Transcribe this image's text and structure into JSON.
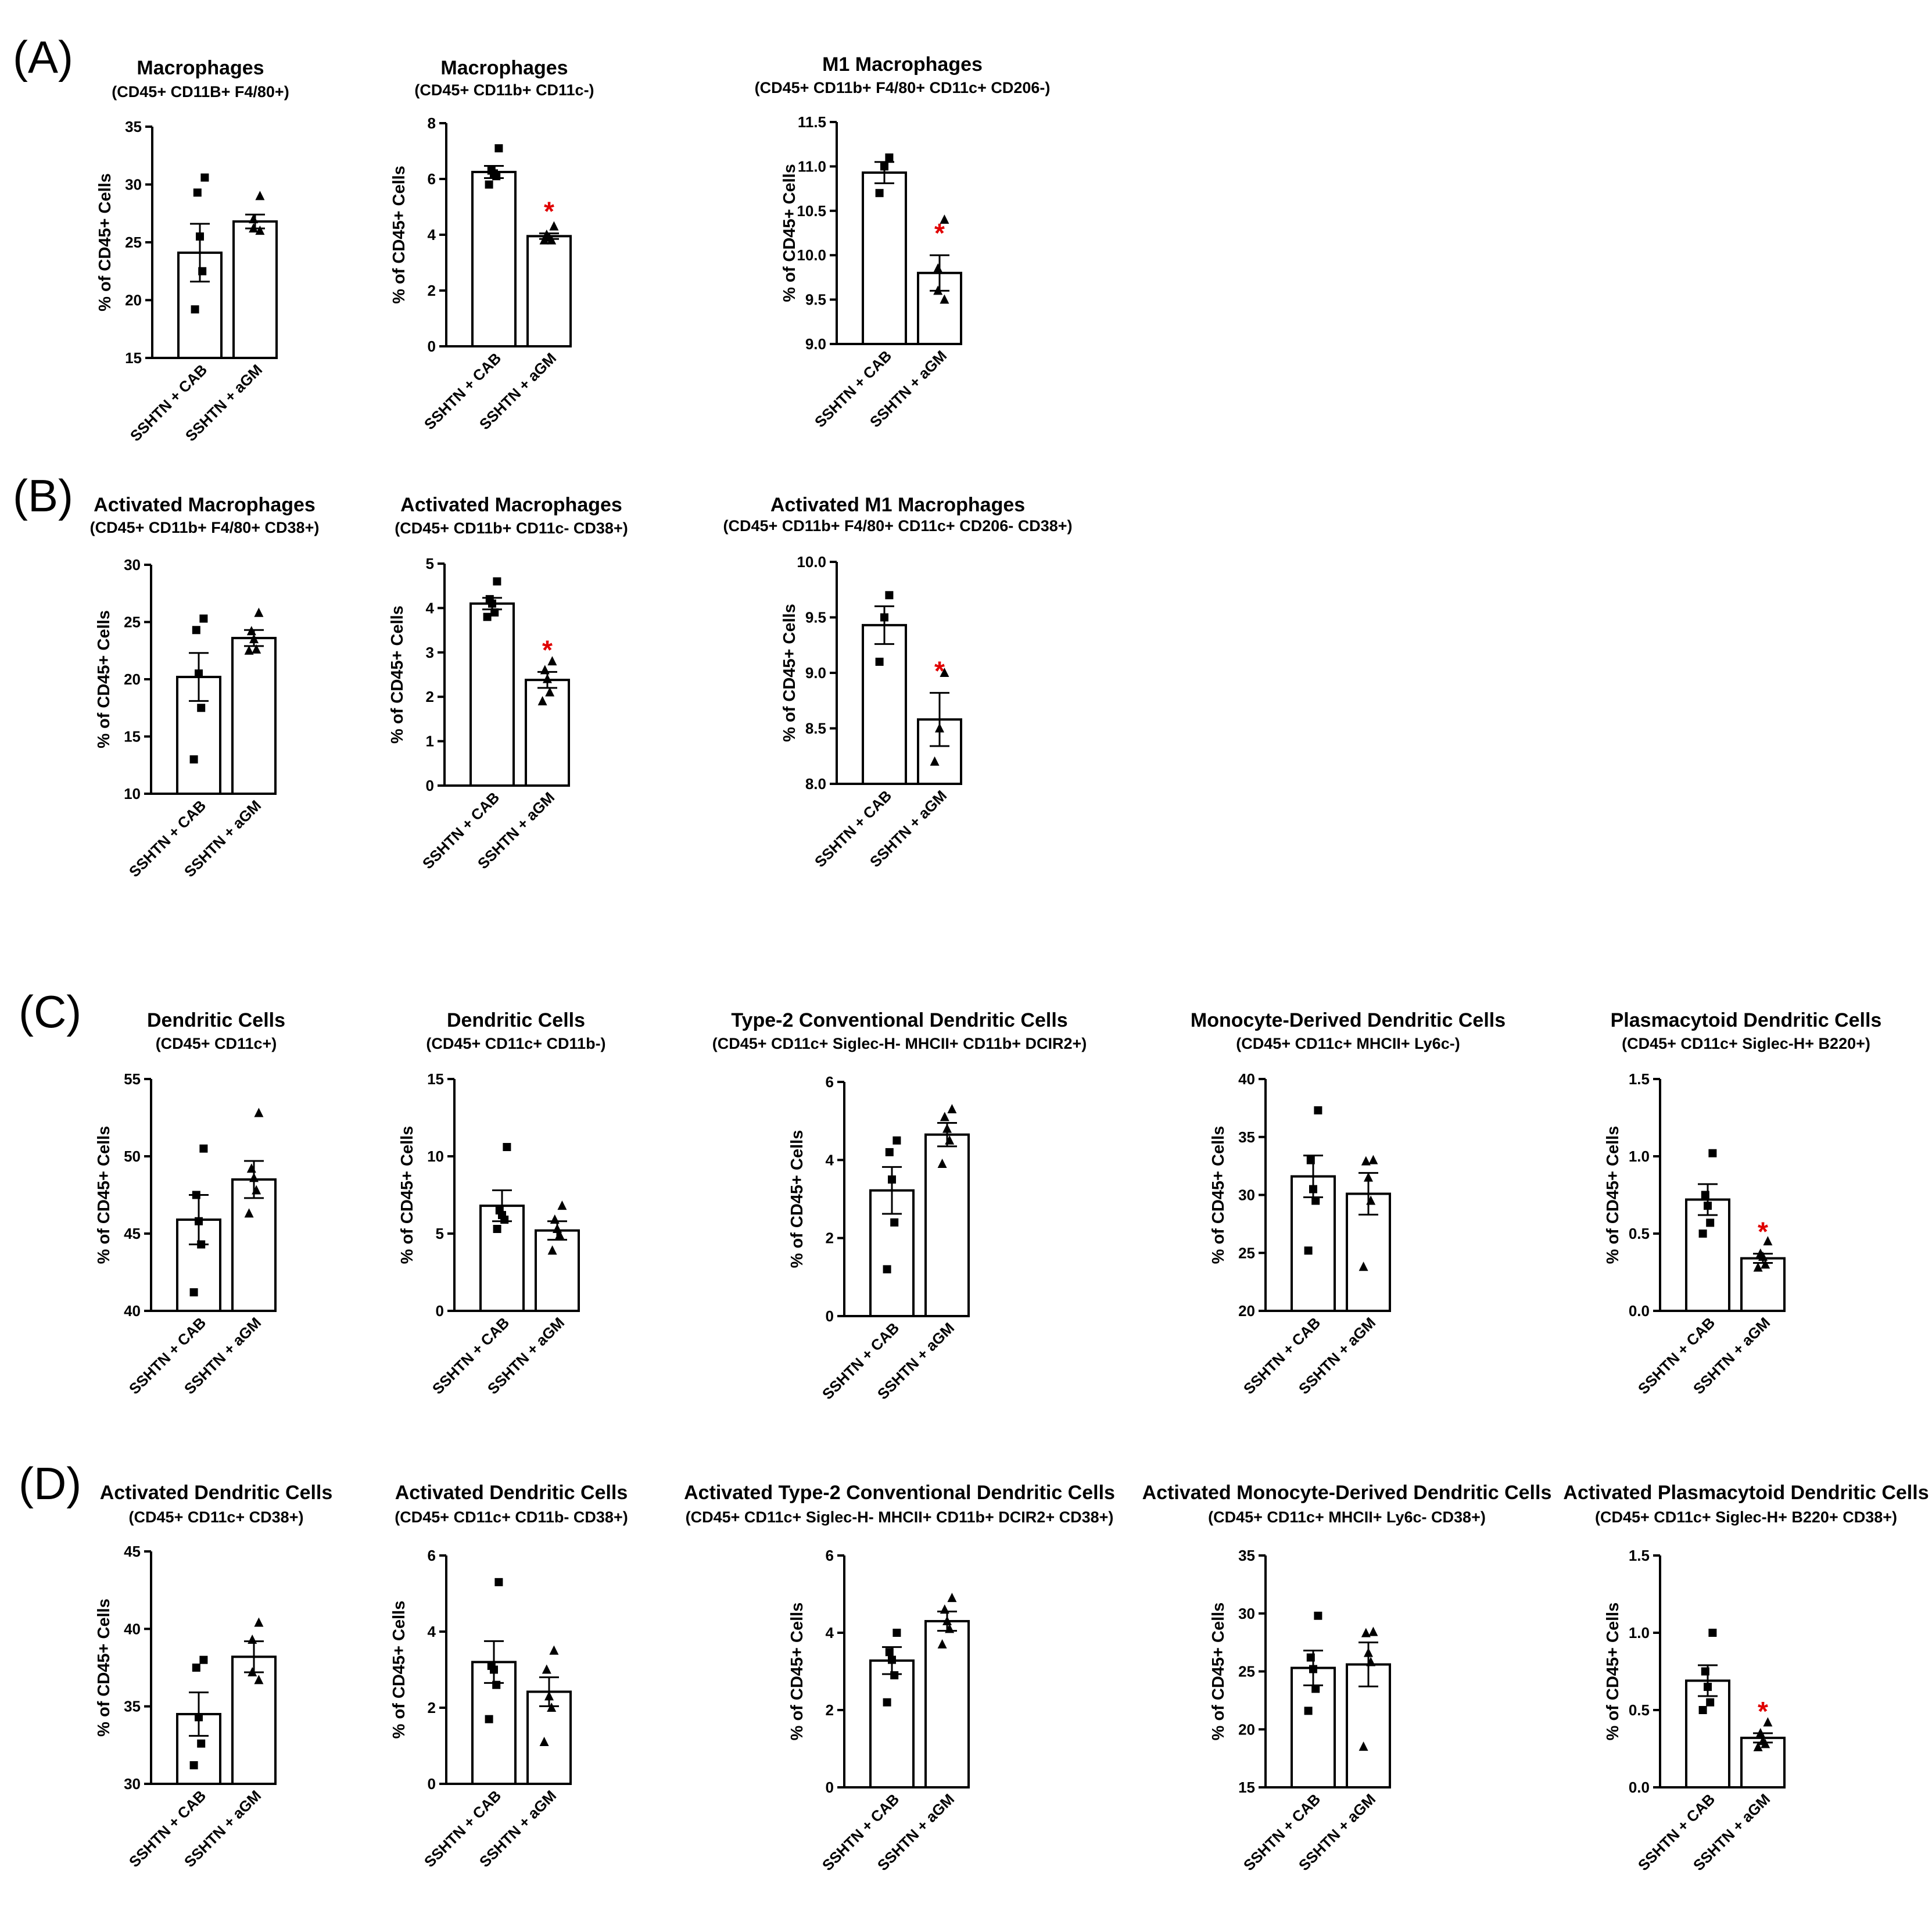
{
  "panel_labels": [
    "(A)",
    "(B)",
    "(C)",
    "(D)"
  ],
  "chart_data": [
    {
      "type": "bar",
      "panel": "A",
      "title": "Macrophages",
      "subtitle": "(CD45+ CD11B+ F4/80+)",
      "ylabel": "% of CD45+ Cells",
      "categories": [
        "SSHTN + CAB",
        "SSHTN + aGM"
      ],
      "ylim": [
        15,
        35
      ],
      "yticks": [
        15,
        20,
        25,
        30,
        35
      ],
      "tick_decimals": 0,
      "series": [
        {
          "name": "SSHTN + CAB",
          "marker": "square",
          "mean": 24.1,
          "sem": 2.5,
          "points": [
            30.6,
            29.3,
            25.5,
            22.5,
            19.2
          ]
        },
        {
          "name": "SSHTN + aGM",
          "marker": "triangle",
          "mean": 26.8,
          "sem": 0.6,
          "points": [
            29.0,
            27.0,
            26.2,
            26.0
          ]
        }
      ],
      "significance": [
        "",
        ""
      ]
    },
    {
      "type": "bar",
      "panel": "A",
      "title": "Macrophages",
      "subtitle": "(CD45+  CD11b+ CD11c-)",
      "ylabel": "% of CD45+ Cells",
      "categories": [
        "SSHTN + CAB",
        "SSHTN + aGM"
      ],
      "ylim": [
        0,
        8
      ],
      "yticks": [
        0,
        2,
        4,
        6,
        8
      ],
      "tick_decimals": 0,
      "series": [
        {
          "name": "SSHTN + CAB",
          "marker": "square",
          "mean": 6.25,
          "sem": 0.22,
          "points": [
            7.1,
            6.3,
            6.2,
            6.1,
            5.8
          ]
        },
        {
          "name": "SSHTN + aGM",
          "marker": "triangle",
          "mean": 3.95,
          "sem": 0.1,
          "points": [
            4.3,
            4.0,
            3.9,
            3.8,
            3.8
          ]
        }
      ],
      "significance": [
        "",
        "*"
      ]
    },
    {
      "type": "bar",
      "panel": "A",
      "title": "M1 Macrophages",
      "subtitle": "(CD45+ CD11b+ F4/80+ CD11c+ CD206-)",
      "ylabel": "% of CD45+ Cells",
      "categories": [
        "SSHTN + CAB",
        "SSHTN + aGM"
      ],
      "ylim": [
        9.0,
        11.5
      ],
      "yticks": [
        9.0,
        9.5,
        10.0,
        10.5,
        11.0,
        11.5
      ],
      "tick_decimals": 1,
      "series": [
        {
          "name": "SSHTN + CAB",
          "marker": "square",
          "mean": 10.93,
          "sem": 0.12,
          "points": [
            11.1,
            11.0,
            10.7
          ]
        },
        {
          "name": "SSHTN + aGM",
          "marker": "triangle",
          "mean": 9.8,
          "sem": 0.2,
          "points": [
            10.4,
            9.85,
            9.6,
            9.5
          ]
        }
      ],
      "significance": [
        "",
        "*"
      ]
    },
    {
      "type": "bar",
      "panel": "B",
      "title": "Activated Macrophages",
      "subtitle": "(CD45+ CD11b+ F4/80+ CD38+)",
      "ylabel": "% of CD45+ Cells",
      "categories": [
        "SSHTN + CAB",
        "SSHTN + aGM"
      ],
      "ylim": [
        10,
        30
      ],
      "yticks": [
        10,
        15,
        20,
        25,
        30
      ],
      "tick_decimals": 0,
      "series": [
        {
          "name": "SSHTN + CAB",
          "marker": "square",
          "mean": 20.2,
          "sem": 2.1,
          "points": [
            25.3,
            24.3,
            20.5,
            17.5,
            13.0
          ]
        },
        {
          "name": "SSHTN + aGM",
          "marker": "triangle",
          "mean": 23.6,
          "sem": 0.7,
          "points": [
            25.8,
            24.2,
            23.5,
            22.6,
            22.5
          ]
        }
      ],
      "significance": [
        "",
        ""
      ]
    },
    {
      "type": "bar",
      "panel": "B",
      "title": "Activated Macrophages",
      "subtitle": "(CD45+ CD11b+ CD11c- CD38+)",
      "ylabel": "% of CD45+ Cells",
      "categories": [
        "SSHTN + CAB",
        "SSHTN + aGM"
      ],
      "ylim": [
        0,
        5
      ],
      "yticks": [
        0,
        1,
        2,
        3,
        4,
        5
      ],
      "tick_decimals": 0,
      "series": [
        {
          "name": "SSHTN + CAB",
          "marker": "square",
          "mean": 4.1,
          "sem": 0.13,
          "points": [
            4.6,
            4.2,
            4.1,
            3.9,
            3.8
          ]
        },
        {
          "name": "SSHTN + aGM",
          "marker": "triangle",
          "mean": 2.38,
          "sem": 0.18,
          "points": [
            2.8,
            2.6,
            2.4,
            2.1,
            1.9
          ]
        }
      ],
      "significance": [
        "",
        "*"
      ]
    },
    {
      "type": "bar",
      "panel": "B",
      "title": "Activated M1 Macrophages",
      "subtitle": "(CD45+ CD11b+ F4/80+ CD11c+ CD206- CD38+)",
      "ylabel": "% of CD45+ Cells",
      "categories": [
        "SSHTN + CAB",
        "SSHTN + aGM"
      ],
      "ylim": [
        8.0,
        10.0
      ],
      "yticks": [
        8.0,
        8.5,
        9.0,
        9.5,
        10.0
      ],
      "tick_decimals": 1,
      "series": [
        {
          "name": "SSHTN + CAB",
          "marker": "square",
          "mean": 9.43,
          "sem": 0.17,
          "points": [
            9.7,
            9.5,
            9.1
          ]
        },
        {
          "name": "SSHTN + aGM",
          "marker": "triangle",
          "mean": 8.58,
          "sem": 0.24,
          "points": [
            9.0,
            8.5,
            8.2
          ]
        }
      ],
      "significance": [
        "",
        "*"
      ]
    },
    {
      "type": "bar",
      "panel": "C",
      "title": "Dendritic Cells",
      "subtitle": "(CD45+ CD11c+)",
      "ylabel": "% of CD45+ Cells",
      "categories": [
        "SSHTN + CAB",
        "SSHTN + aGM"
      ],
      "ylim": [
        40,
        55
      ],
      "yticks": [
        40,
        45,
        50,
        55
      ],
      "tick_decimals": 0,
      "series": [
        {
          "name": "SSHTN + CAB",
          "marker": "square",
          "mean": 45.9,
          "sem": 1.6,
          "points": [
            50.5,
            47.5,
            45.8,
            44.3,
            41.2
          ]
        },
        {
          "name": "SSHTN + aGM",
          "marker": "triangle",
          "mean": 48.5,
          "sem": 1.2,
          "points": [
            52.8,
            49.2,
            48.6,
            47.8,
            46.3
          ]
        }
      ],
      "significance": [
        "",
        ""
      ]
    },
    {
      "type": "bar",
      "panel": "C",
      "title": "Dendritic Cells",
      "subtitle": "(CD45+ CD11c+ CD11b-)",
      "ylabel": "% of CD45+ Cells",
      "categories": [
        "SSHTN + CAB",
        "SSHTN + aGM"
      ],
      "ylim": [
        0,
        15
      ],
      "yticks": [
        0,
        5,
        10,
        15
      ],
      "tick_decimals": 0,
      "series": [
        {
          "name": "SSHTN + CAB",
          "marker": "square",
          "mean": 6.8,
          "sem": 1.0,
          "points": [
            10.6,
            6.5,
            6.2,
            5.9,
            5.3
          ]
        },
        {
          "name": "SSHTN + aGM",
          "marker": "triangle",
          "mean": 5.2,
          "sem": 0.6,
          "points": [
            6.8,
            5.9,
            5.3,
            4.9,
            3.9
          ]
        }
      ],
      "significance": [
        "",
        ""
      ]
    },
    {
      "type": "bar",
      "panel": "C",
      "title": "Type-2 Conventional Dendritic Cells",
      "subtitle": "(CD45+ CD11c+ Siglec-H-  MHCII+ CD11b+ DCIR2+)",
      "ylabel": "% of CD45+ Cells",
      "categories": [
        "SSHTN + CAB",
        "SSHTN + aGM"
      ],
      "ylim": [
        0,
        6
      ],
      "yticks": [
        0,
        2,
        4,
        6
      ],
      "tick_decimals": 0,
      "series": [
        {
          "name": "SSHTN + CAB",
          "marker": "square",
          "mean": 3.22,
          "sem": 0.6,
          "points": [
            4.5,
            4.2,
            3.5,
            2.4,
            1.2
          ]
        },
        {
          "name": "SSHTN + aGM",
          "marker": "triangle",
          "mean": 4.65,
          "sem": 0.3,
          "points": [
            5.3,
            5.1,
            4.8,
            4.5,
            3.9
          ]
        }
      ],
      "significance": [
        "",
        ""
      ]
    },
    {
      "type": "bar",
      "panel": "C",
      "title": "Monocyte-Derived Dendritic Cells",
      "subtitle": "(CD45+ CD11c+ MHCII+ Ly6c-)",
      "ylabel": "% of CD45+ Cells",
      "categories": [
        "SSHTN + CAB",
        "SSHTN + aGM"
      ],
      "ylim": [
        20,
        40
      ],
      "yticks": [
        20,
        25,
        30,
        35,
        40
      ],
      "tick_decimals": 0,
      "series": [
        {
          "name": "SSHTN + CAB",
          "marker": "square",
          "mean": 31.6,
          "sem": 1.8,
          "points": [
            37.3,
            33.0,
            30.5,
            29.5,
            25.2
          ]
        },
        {
          "name": "SSHTN + aGM",
          "marker": "triangle",
          "mean": 30.1,
          "sem": 1.8,
          "points": [
            33.0,
            32.9,
            31.5,
            29.5,
            23.8
          ]
        }
      ],
      "significance": [
        "",
        ""
      ]
    },
    {
      "type": "bar",
      "panel": "C",
      "title": "Plasmacytoid Dendritic Cells",
      "subtitle": "(CD45+ CD11c+ Siglec-H+ B220+)",
      "ylabel": "% of CD45+ Cells",
      "categories": [
        "SSHTN + CAB",
        "SSHTN + aGM"
      ],
      "ylim": [
        0.0,
        1.5
      ],
      "yticks": [
        0.0,
        0.5,
        1.0,
        1.5
      ],
      "tick_decimals": 1,
      "series": [
        {
          "name": "SSHTN + CAB",
          "marker": "square",
          "mean": 0.72,
          "sem": 0.1,
          "points": [
            1.02,
            0.75,
            0.68,
            0.57,
            0.5
          ]
        },
        {
          "name": "SSHTN + aGM",
          "marker": "triangle",
          "mean": 0.34,
          "sem": 0.03,
          "points": [
            0.45,
            0.37,
            0.35,
            0.3,
            0.28
          ]
        }
      ],
      "significance": [
        "",
        "*"
      ]
    },
    {
      "type": "bar",
      "panel": "D",
      "title": "Activated Dendritic Cells",
      "subtitle": "(CD45+ CD11c+ CD38+)",
      "ylabel": "% of CD45+ Cells",
      "categories": [
        "SSHTN + CAB",
        "SSHTN + aGM"
      ],
      "ylim": [
        30,
        45
      ],
      "yticks": [
        30,
        35,
        40,
        45
      ],
      "tick_decimals": 0,
      "series": [
        {
          "name": "SSHTN + CAB",
          "marker": "square",
          "mean": 34.5,
          "sem": 1.4,
          "points": [
            38.0,
            37.5,
            34.3,
            32.6,
            31.2
          ]
        },
        {
          "name": "SSHTN + aGM",
          "marker": "triangle",
          "mean": 38.2,
          "sem": 1.0,
          "points": [
            40.4,
            39.3,
            37.2,
            36.7
          ]
        }
      ],
      "significance": [
        "",
        ""
      ]
    },
    {
      "type": "bar",
      "panel": "D",
      "title": "Activated Dendritic Cells",
      "subtitle": "(CD45+ CD11c+ CD11b- CD38+)",
      "ylabel": "% of CD45+ Cells",
      "categories": [
        "SSHTN + CAB",
        "SSHTN + aGM"
      ],
      "ylim": [
        0,
        6
      ],
      "yticks": [
        0,
        2,
        4,
        6
      ],
      "tick_decimals": 0,
      "series": [
        {
          "name": "SSHTN + CAB",
          "marker": "square",
          "mean": 3.2,
          "sem": 0.55,
          "points": [
            5.3,
            3.1,
            3.0,
            2.6,
            1.7
          ]
        },
        {
          "name": "SSHTN + aGM",
          "marker": "triangle",
          "mean": 2.42,
          "sem": 0.38,
          "points": [
            3.5,
            3.0,
            2.3,
            2.0,
            1.1
          ]
        }
      ],
      "significance": [
        "",
        ""
      ]
    },
    {
      "type": "bar",
      "panel": "D",
      "title": "Activated Type-2 Conventional Dendritic Cells",
      "subtitle": "(CD45+ CD11c+ Siglec-H-  MHCII+ CD11b+ DCIR2+ CD38+)",
      "ylabel": "% of CD45+ Cells",
      "categories": [
        "SSHTN + CAB",
        "SSHTN + aGM"
      ],
      "ylim": [
        0,
        6
      ],
      "yticks": [
        0,
        2,
        4,
        6
      ],
      "tick_decimals": 0,
      "series": [
        {
          "name": "SSHTN + CAB",
          "marker": "square",
          "mean": 3.28,
          "sem": 0.35,
          "points": [
            4.0,
            3.5,
            3.3,
            2.9,
            2.2
          ]
        },
        {
          "name": "SSHTN + aGM",
          "marker": "triangle",
          "mean": 4.3,
          "sem": 0.25,
          "points": [
            4.9,
            4.6,
            4.3,
            4.1,
            3.7
          ]
        }
      ],
      "significance": [
        "",
        ""
      ]
    },
    {
      "type": "bar",
      "panel": "D",
      "title": "Activated Monocyte-Derived Dendritic Cells",
      "subtitle": "(CD45+ CD11c+ MHCII+ Ly6c- CD38+)",
      "ylabel": "% of CD45+ Cells",
      "categories": [
        "SSHTN + CAB",
        "SSHTN + aGM"
      ],
      "ylim": [
        15,
        35
      ],
      "yticks": [
        15,
        20,
        25,
        30,
        35
      ],
      "tick_decimals": 0,
      "series": [
        {
          "name": "SSHTN + CAB",
          "marker": "square",
          "mean": 25.3,
          "sem": 1.5,
          "points": [
            29.8,
            26.2,
            25.2,
            23.5,
            21.6
          ]
        },
        {
          "name": "SSHTN + aGM",
          "marker": "triangle",
          "mean": 25.6,
          "sem": 1.9,
          "points": [
            28.4,
            28.3,
            26.6,
            25.8,
            18.5
          ]
        }
      ],
      "significance": [
        "",
        ""
      ]
    },
    {
      "type": "bar",
      "panel": "D",
      "title": "Activated Plasmacytoid Dendritic Cells",
      "subtitle": "(CD45+ CD11c+ Siglec-H+ B220+ CD38+)",
      "ylabel": "% of CD45+ Cells",
      "categories": [
        "SSHTN + CAB",
        "SSHTN + aGM"
      ],
      "ylim": [
        0.0,
        1.5
      ],
      "yticks": [
        0.0,
        0.5,
        1.0,
        1.5
      ],
      "tick_decimals": 1,
      "series": [
        {
          "name": "SSHTN + CAB",
          "marker": "square",
          "mean": 0.69,
          "sem": 0.1,
          "points": [
            1.0,
            0.75,
            0.65,
            0.55,
            0.5
          ]
        },
        {
          "name": "SSHTN + aGM",
          "marker": "triangle",
          "mean": 0.32,
          "sem": 0.03,
          "points": [
            0.42,
            0.35,
            0.3,
            0.28,
            0.26
          ]
        }
      ],
      "significance": [
        "",
        "*"
      ]
    }
  ]
}
